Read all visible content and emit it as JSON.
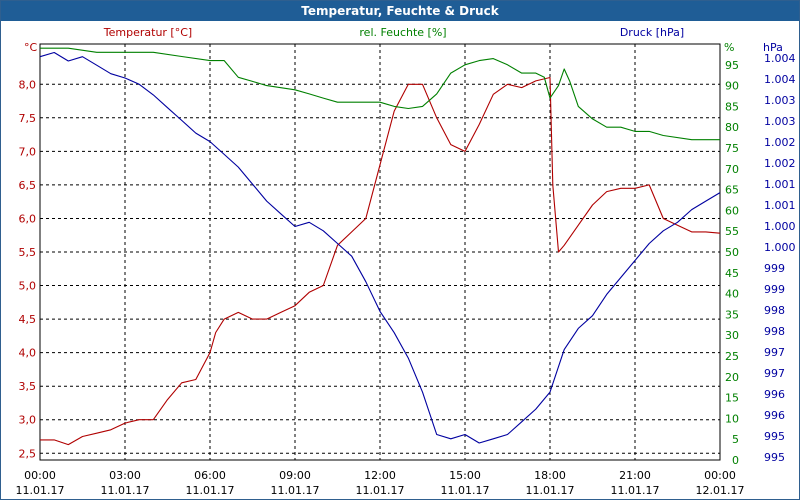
{
  "window": {
    "title": "Temperatur, Feuchte & Druck"
  },
  "colors": {
    "temperature": "#b00000",
    "humidity": "#008000",
    "pressure": "#0000a0",
    "grid": "#000000",
    "background": "#ffffff",
    "titlebar": "#1f5d96"
  },
  "chart_data": {
    "type": "line",
    "title": "Temperatur, Feuchte & Druck",
    "x_unit": "hours",
    "xlim": [
      0,
      24
    ],
    "x_ticks": [
      {
        "time": "00:00",
        "date": "11.01.17"
      },
      {
        "time": "03:00",
        "date": "11.01.17"
      },
      {
        "time": "06:00",
        "date": "11.01.17"
      },
      {
        "time": "09:00",
        "date": "11.01.17"
      },
      {
        "time": "12:00",
        "date": "11.01.17"
      },
      {
        "time": "15:00",
        "date": "11.01.17"
      },
      {
        "time": "18:00",
        "date": "11.01.17"
      },
      {
        "time": "21:00",
        "date": "11.01.17"
      },
      {
        "time": "00:00",
        "date": "12.01.17"
      }
    ],
    "axes": {
      "temperature": {
        "label": "Temperatur [°C]",
        "unit": "°C",
        "ylim": [
          2.4,
          8.6
        ],
        "ticks": [
          "8,0",
          "7,5",
          "7,0",
          "6,5",
          "6,0",
          "5,5",
          "5,0",
          "4,5",
          "4,0",
          "3,5",
          "3,0",
          "2,5"
        ],
        "tick_values": [
          8.0,
          7.5,
          7.0,
          6.5,
          6.0,
          5.5,
          5.0,
          4.5,
          4.0,
          3.5,
          3.0,
          2.5
        ]
      },
      "humidity": {
        "label": "rel. Feuchte [%]",
        "unit": "%",
        "ylim": [
          0,
          100
        ],
        "ticks": [
          "95",
          "90",
          "85",
          "80",
          "75",
          "70",
          "65",
          "60",
          "55",
          "50",
          "45",
          "40",
          "35",
          "30",
          "25",
          "20",
          "15",
          "10",
          "5",
          "0"
        ],
        "tick_values": [
          95,
          90,
          85,
          80,
          75,
          70,
          65,
          60,
          55,
          50,
          45,
          40,
          35,
          30,
          25,
          20,
          15,
          10,
          5,
          0
        ]
      },
      "pressure": {
        "label": "Druck [hPa]",
        "unit": "hPa",
        "ylim": [
          994.7,
          1004.5
        ],
        "ticks": [
          "1.004",
          "1.004",
          "1.003",
          "1.003",
          "1.002",
          "1.002",
          "1.001",
          "1.001",
          "1.000",
          "1.000",
          "999",
          "999",
          "998",
          "998",
          "997",
          "997",
          "996",
          "996",
          "995",
          "995"
        ]
      }
    },
    "series": [
      {
        "name": "Temperatur [°C]",
        "axis": "temperature",
        "x": [
          0,
          0.5,
          1,
          1.5,
          2,
          2.5,
          3,
          3.5,
          4,
          4.5,
          5,
          5.5,
          6,
          6.2,
          6.5,
          7,
          7.5,
          8,
          8.5,
          9,
          9.5,
          10,
          10.5,
          11,
          11.5,
          12,
          12.5,
          13,
          13.5,
          14,
          14.5,
          15,
          15.5,
          16,
          16.5,
          17,
          17.5,
          18,
          18.1,
          18.3,
          18.5,
          19,
          19.5,
          20,
          20.5,
          21,
          21.5,
          22,
          22.5,
          23,
          23.5,
          24
        ],
        "values": [
          2.7,
          2.7,
          2.63,
          2.75,
          2.8,
          2.85,
          2.95,
          3.0,
          3.0,
          3.3,
          3.55,
          3.6,
          4.0,
          4.3,
          4.5,
          4.6,
          4.5,
          4.5,
          4.6,
          4.7,
          4.9,
          5.0,
          5.6,
          5.8,
          6.0,
          6.8,
          7.6,
          8.0,
          8.0,
          7.5,
          7.1,
          7.0,
          7.4,
          7.85,
          8.0,
          7.95,
          8.05,
          8.1,
          6.5,
          5.5,
          5.6,
          5.9,
          6.2,
          6.4,
          6.45,
          6.45,
          6.5,
          6.0,
          5.9,
          5.8,
          5.8,
          5.78
        ]
      },
      {
        "name": "rel. Feuchte [%]",
        "axis": "humidity",
        "x": [
          0,
          1,
          2,
          3,
          4,
          5,
          6,
          6.5,
          7,
          7.5,
          8,
          9,
          9.5,
          10,
          10.5,
          11,
          11.5,
          12,
          12.5,
          13,
          13.5,
          14,
          14.5,
          15,
          15.5,
          16,
          16.5,
          17,
          17.5,
          17.8,
          18,
          18.3,
          18.5,
          18.7,
          19,
          19.5,
          20,
          20.5,
          21,
          21.5,
          22,
          23,
          24
        ],
        "values": [
          99,
          99,
          98,
          98,
          98,
          97,
          96,
          96,
          92,
          91,
          90,
          89,
          88,
          87,
          86,
          86,
          86,
          86,
          85,
          84.5,
          85,
          88,
          93,
          95,
          96,
          96.5,
          95,
          93,
          93,
          92,
          87,
          90,
          94,
          91,
          85,
          82,
          80,
          80,
          79,
          79,
          78,
          77,
          77
        ]
      },
      {
        "name": "Druck [hPa]",
        "axis": "pressure",
        "x": [
          0,
          0.5,
          1,
          1.5,
          2,
          2.5,
          3,
          3.5,
          4,
          4.5,
          5,
          5.5,
          6,
          6.5,
          7,
          7.5,
          8,
          8.5,
          9,
          9.5,
          10,
          10.5,
          11,
          11.5,
          12,
          12.5,
          13,
          13.5,
          14,
          14.5,
          15,
          15.5,
          16,
          16.5,
          17,
          17.5,
          18,
          18.5,
          19,
          19.5,
          20,
          20.5,
          21,
          21.5,
          22,
          22.5,
          23,
          23.5,
          24
        ],
        "values": [
          1004.2,
          1004.3,
          1004.1,
          1004.2,
          1004.0,
          1003.8,
          1003.7,
          1003.55,
          1003.3,
          1003.0,
          1002.7,
          1002.4,
          1002.2,
          1001.9,
          1001.6,
          1001.2,
          1000.8,
          1000.5,
          1000.2,
          1000.3,
          1000.1,
          999.8,
          999.5,
          998.9,
          998.2,
          997.7,
          997.1,
          996.3,
          995.3,
          995.2,
          995.3,
          995.1,
          995.2,
          995.3,
          995.6,
          995.9,
          996.3,
          997.3,
          997.8,
          998.1,
          998.6,
          999.0,
          999.4,
          999.8,
          1000.1,
          1000.3,
          1000.6,
          1000.8,
          1001.0
        ]
      }
    ]
  }
}
